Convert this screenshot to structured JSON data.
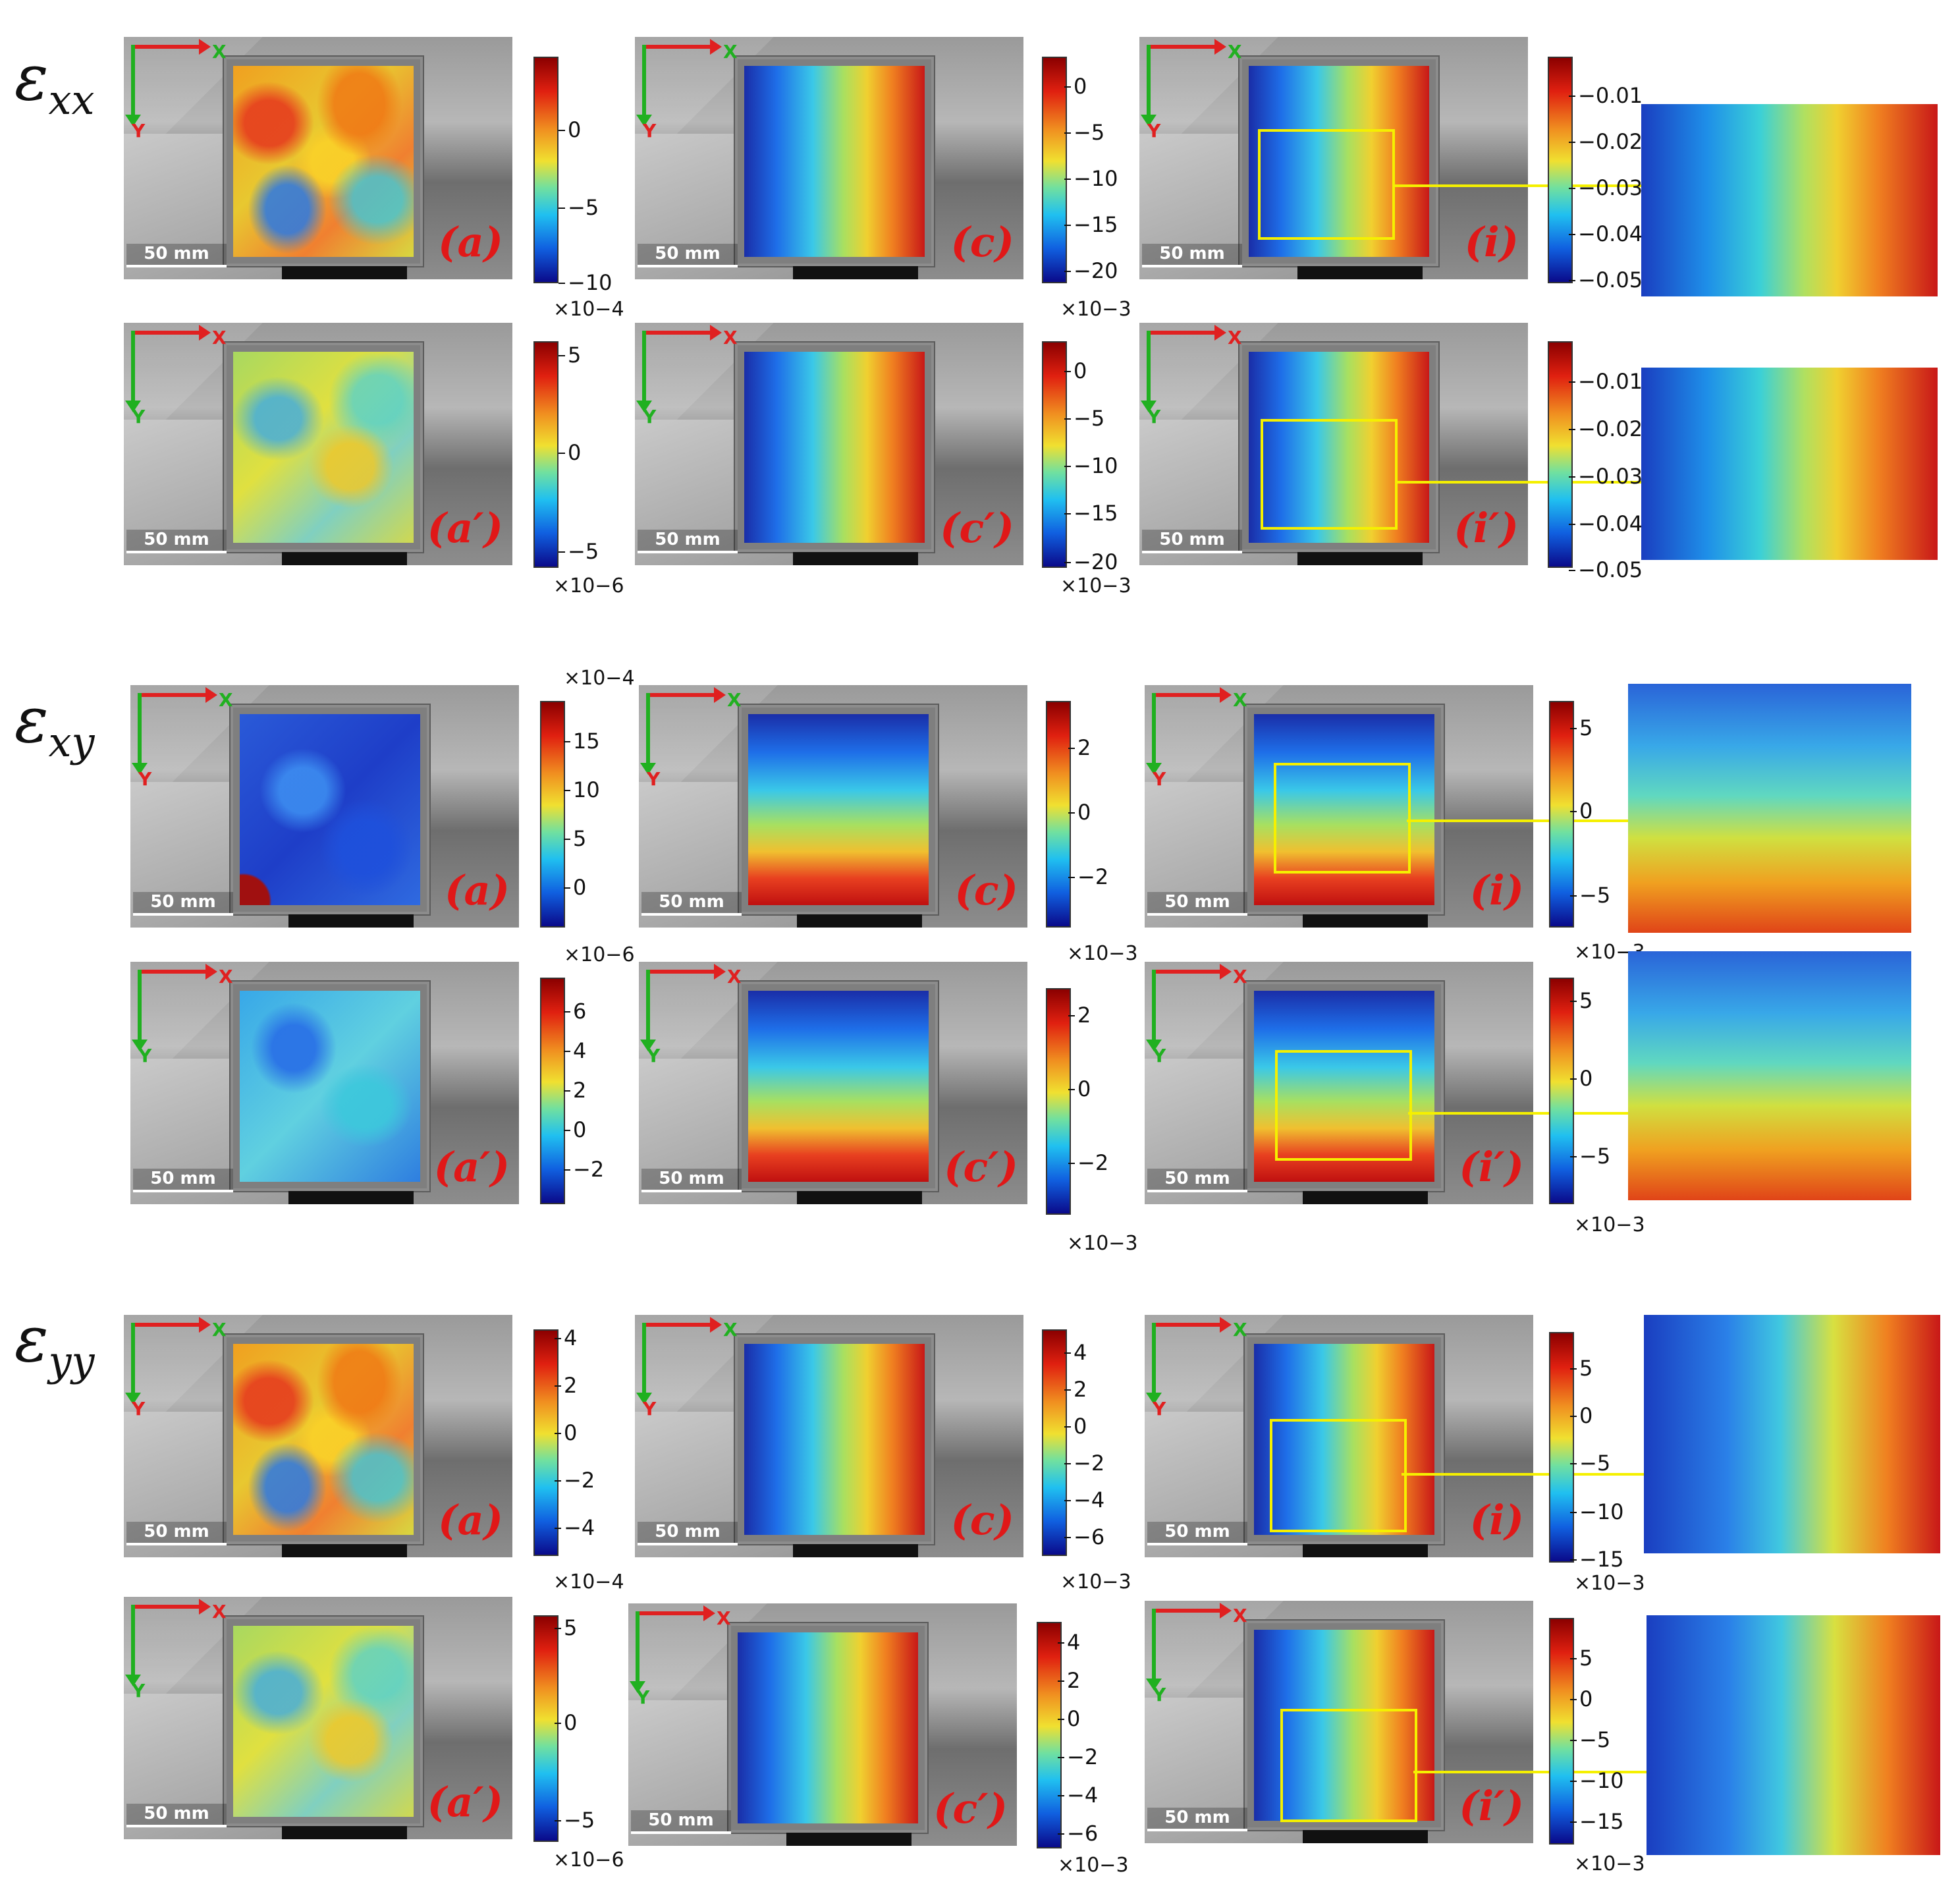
{
  "sections": [
    {
      "label_main": "ε",
      "label_sub": "xx"
    },
    {
      "label_main": "ε",
      "label_sub": "xy"
    },
    {
      "label_main": "ε",
      "label_sub": "yy"
    }
  ],
  "axis_labels": {
    "x": "X",
    "y": "Y"
  },
  "scale_bar": "50 mm",
  "tags": {
    "a": "(a)",
    "a_prime": "(a′)",
    "c": "(c)",
    "c_prime": "(c′)",
    "i": "(i)",
    "i_prime": "(i′)"
  },
  "colorbars": {
    "xx_a": {
      "ticks": [
        "0",
        "−5",
        "−10"
      ],
      "scale": "×10−4"
    },
    "xx_c": {
      "ticks": [
        "0",
        "−5",
        "−10",
        "−15",
        "−20"
      ],
      "scale": "×10−3"
    },
    "xx_i": {
      "ticks": [
        "−0.01",
        "−0.02",
        "−0.03",
        "−0.04",
        "−0.05"
      ]
    },
    "xx_ap": {
      "ticks": [
        "5",
        "0",
        "−5"
      ],
      "scale": "×10−6"
    },
    "xx_cp": {
      "ticks": [
        "0",
        "−5",
        "−10",
        "−15",
        "−20"
      ],
      "scale": "×10−3"
    },
    "xx_ip": {
      "ticks": [
        "−0.01",
        "−0.02",
        "−0.03",
        "−0.04",
        "−0.05"
      ]
    },
    "xy_a": {
      "ticks": [
        "15",
        "10",
        "5",
        "0"
      ],
      "scale": "×10−4"
    },
    "xy_c": {
      "ticks": [
        "2",
        "0",
        "−2"
      ],
      "scale": "×10−3"
    },
    "xy_i": {
      "ticks": [
        "5",
        "0",
        "−5"
      ],
      "scale": "×10−3"
    },
    "xy_ap": {
      "ticks": [
        "6",
        "4",
        "2",
        "0",
        "−2"
      ],
      "scale": "×10−6"
    },
    "xy_cp": {
      "ticks": [
        "2",
        "0",
        "−2"
      ],
      "scale": "×10−3"
    },
    "xy_ip": {
      "ticks": [
        "5",
        "0",
        "−5"
      ],
      "scale": "×10−3"
    },
    "yy_a": {
      "ticks": [
        "4",
        "2",
        "0",
        "−2",
        "−4"
      ],
      "scale": "×10−4"
    },
    "yy_c": {
      "ticks": [
        "4",
        "2",
        "0",
        "−2",
        "−4",
        "−6"
      ],
      "scale": "×10−3"
    },
    "yy_i": {
      "ticks": [
        "5",
        "0",
        "−5",
        "−10",
        "−15"
      ],
      "scale": "×10−3"
    },
    "yy_ap": {
      "ticks": [
        "5",
        "0",
        "−5"
      ],
      "scale": "×10−6"
    },
    "yy_cp": {
      "ticks": [
        "4",
        "2",
        "0",
        "−2",
        "−4",
        "−6"
      ],
      "scale": "×10−3"
    },
    "yy_ip": {
      "ticks": [
        "5",
        "0",
        "−5",
        "−10",
        "−15"
      ],
      "scale": "×10−3"
    }
  }
}
